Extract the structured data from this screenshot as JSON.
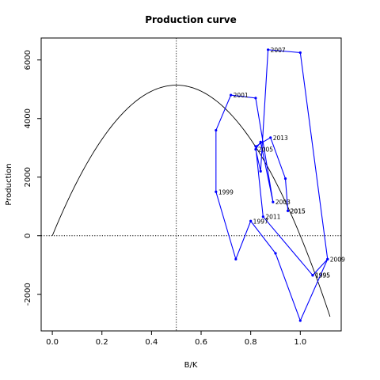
{
  "chart_data": {
    "type": "line",
    "title": "Production curve",
    "xlabel": "B/K",
    "ylabel": "Production",
    "xlim": [
      -0.045,
      1.165
    ],
    "ylim": [
      -3250,
      6750
    ],
    "x_ticks": [
      0.0,
      0.2,
      0.4,
      0.6,
      0.8,
      1.0
    ],
    "x_tick_labels": [
      "0.0",
      "0.2",
      "0.4",
      "0.6",
      "0.8",
      "1.0"
    ],
    "y_ticks": [
      -2000,
      0,
      2000,
      4000,
      6000
    ],
    "y_tick_labels": [
      "-2000",
      "0",
      "2000",
      "4000",
      "6000"
    ],
    "grid": false,
    "reference_lines": {
      "vertical_x": 0.5,
      "horizontal_y": 0
    },
    "curve": {
      "type": "parabola",
      "r_times_k_over_4": 5140,
      "x_range": [
        0.0,
        1.12
      ],
      "color": "#000000"
    },
    "series": [
      {
        "color": "#0000ff",
        "points": [
          {
            "x": 1.05,
            "y": -1350,
            "label": "1995"
          },
          {
            "x": 1.11,
            "y": -800,
            "label": ""
          },
          {
            "x": 1.0,
            "y": -2900,
            "label": ""
          },
          {
            "x": 0.9,
            "y": -600,
            "label": ""
          },
          {
            "x": 0.8,
            "y": 500,
            "label": "1997"
          },
          {
            "x": 0.74,
            "y": -800,
            "label": ""
          },
          {
            "x": 0.66,
            "y": 1500,
            "label": "1999"
          },
          {
            "x": 0.66,
            "y": 3600,
            "label": ""
          },
          {
            "x": 0.72,
            "y": 4800,
            "label": "2001"
          },
          {
            "x": 0.82,
            "y": 4700,
            "label": ""
          },
          {
            "x": 0.89,
            "y": 1150,
            "label": "2003"
          },
          {
            "x": 0.84,
            "y": 3200,
            "label": ""
          },
          {
            "x": 0.82,
            "y": 2950,
            "label": "2005"
          },
          {
            "x": 0.84,
            "y": 2200,
            "label": ""
          },
          {
            "x": 0.87,
            "y": 6350,
            "label": "2007"
          },
          {
            "x": 1.0,
            "y": 6250,
            "label": ""
          },
          {
            "x": 1.11,
            "y": -800,
            "label": "2009"
          },
          {
            "x": 1.05,
            "y": -1350,
            "label": "1995"
          },
          {
            "x": 0.85,
            "y": 650,
            "label": "2011"
          },
          {
            "x": 0.82,
            "y": 3050,
            "label": ""
          },
          {
            "x": 0.88,
            "y": 3350,
            "label": "2013"
          },
          {
            "x": 0.94,
            "y": 1950,
            "label": ""
          },
          {
            "x": 0.95,
            "y": 850,
            "label": "2015"
          },
          {
            "x": 0.95,
            "y": 850,
            "label": "2015"
          }
        ]
      }
    ]
  }
}
